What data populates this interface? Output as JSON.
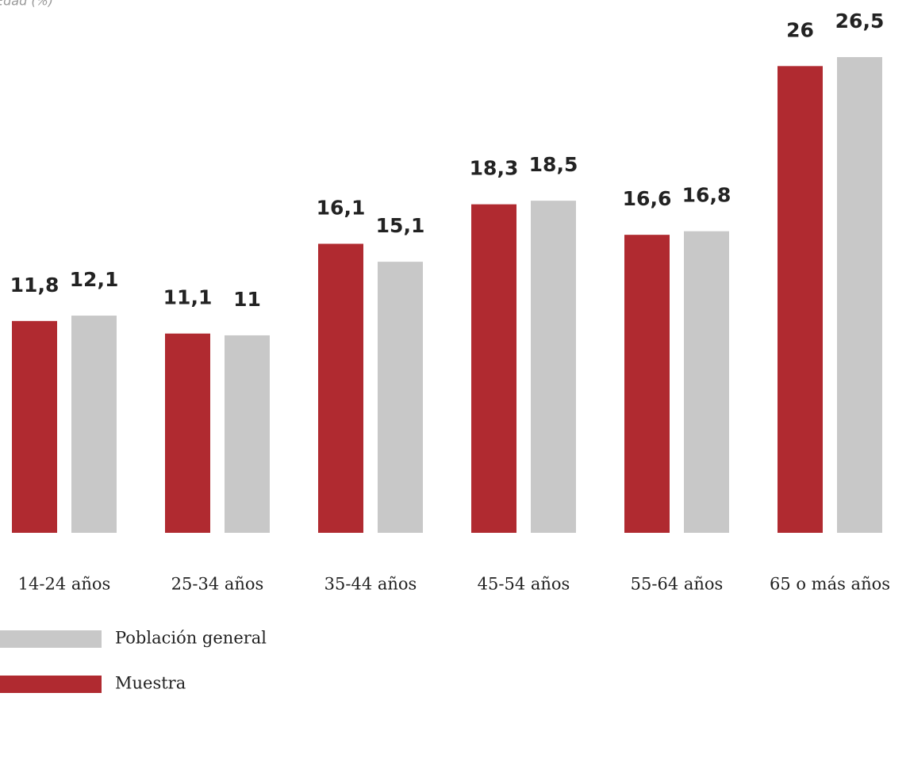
{
  "chart_data": {
    "type": "bar",
    "title": "Edad (%)",
    "categories": [
      "14-24 años",
      "25-34 años",
      "35-44 años",
      "45-54 años",
      "55-64 años",
      "65 o más años"
    ],
    "series": [
      {
        "name": "Muestra",
        "color": "#b02a30",
        "values": [
          11.8,
          11.1,
          16.1,
          18.3,
          16.6,
          26
        ],
        "value_labels": [
          "11,8",
          "11,1",
          "16,1",
          "18,3",
          "16,6",
          "26"
        ]
      },
      {
        "name": "Población general",
        "color": "#c8c8c8",
        "values": [
          12.1,
          11,
          15.1,
          18.5,
          16.8,
          26.5
        ],
        "value_labels": [
          "12,1",
          "11",
          "15,1",
          "18,5",
          "16,8",
          "26,5"
        ]
      }
    ],
    "ylim": [
      0,
      26.5
    ],
    "grid": false
  }
}
